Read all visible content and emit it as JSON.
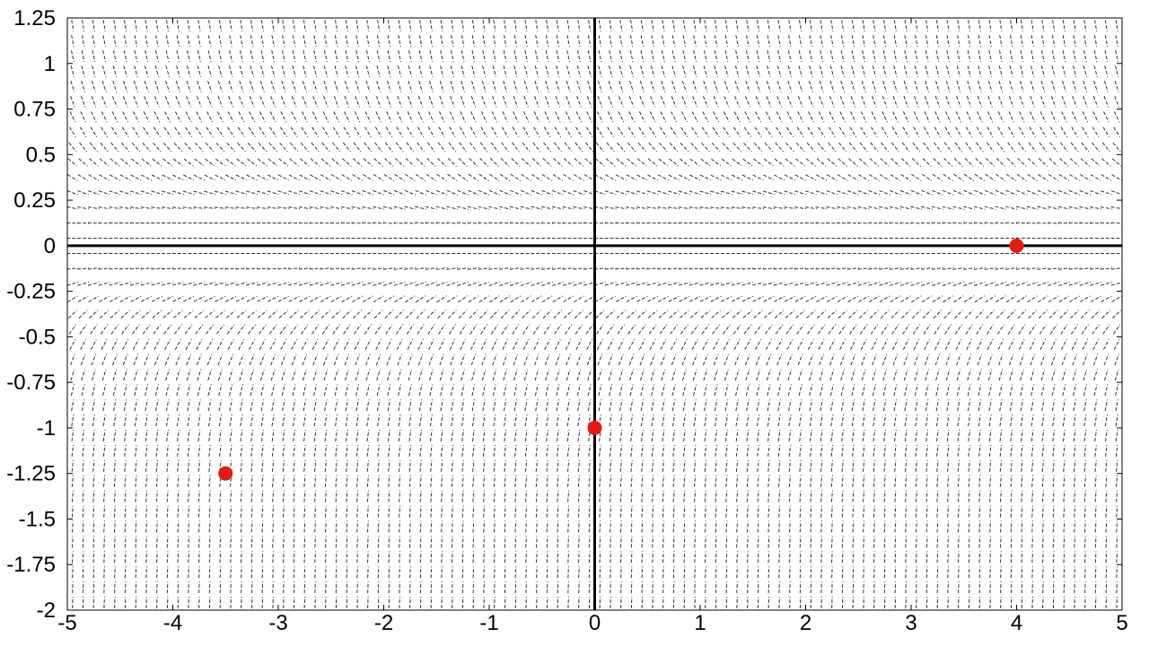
{
  "chart_data": {
    "type": "slope-field",
    "title": "",
    "xlabel": "",
    "ylabel": "",
    "xlim": [
      -5,
      5
    ],
    "ylim": [
      -2,
      1.25
    ],
    "x_ticks": [
      "-5",
      "-4",
      "-3",
      "-2",
      "-1",
      "0",
      "1",
      "2",
      "3",
      "4",
      "5"
    ],
    "y_ticks": [
      "1.25",
      "1",
      "0.75",
      "0.5",
      "0.25",
      "0",
      "-0.25",
      "-0.5",
      "-0.75",
      "-1",
      "-1.25",
      "-1.5",
      "-1.75",
      "-2"
    ],
    "grid": false,
    "legend": "none",
    "field": {
      "x_step": 0.1,
      "y_step": 0.0833,
      "color": "#333333",
      "style": "dashed"
    },
    "points": [
      {
        "x": -3.5,
        "y": -1.25
      },
      {
        "x": 0,
        "y": -1
      },
      {
        "x": 4,
        "y": 0
      }
    ],
    "point_color": "#e8190f",
    "axis_color": "#000000"
  }
}
